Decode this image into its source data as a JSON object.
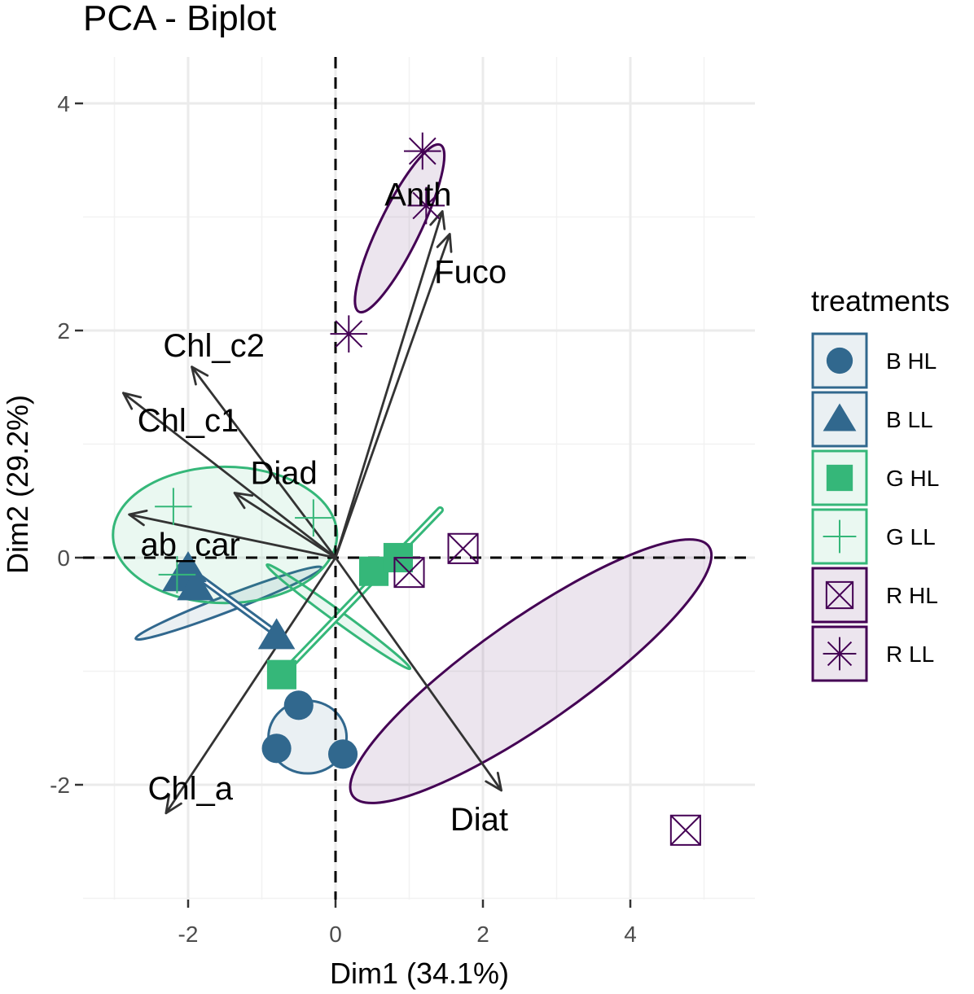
{
  "chart_data": {
    "type": "scatter",
    "title": "PCA - Biplot",
    "xlabel": "Dim1 (34.1%)",
    "ylabel": "Dim2 (29.2%)",
    "xlim": [
      -3.4,
      5.7
    ],
    "ylim": [
      -3.0,
      4.2
    ],
    "x_ticks": [
      -2,
      0,
      2,
      4
    ],
    "x_tick_labels": [
      "-2",
      "0",
      "2",
      "4"
    ],
    "y_ticks": [
      -2,
      0,
      2,
      4
    ],
    "y_tick_labels": [
      "-2",
      "0",
      "2",
      "4"
    ],
    "grid": true,
    "reference_lines": {
      "x": 0,
      "y": 0
    },
    "legend": {
      "title": "treatments",
      "position": "right",
      "entries": [
        {
          "label": "B HL",
          "color": "#31688E",
          "shape": "circle"
        },
        {
          "label": "B LL",
          "color": "#31688E",
          "shape": "triangle"
        },
        {
          "label": "G HL",
          "color": "#35B779",
          "shape": "square"
        },
        {
          "label": "G LL",
          "color": "#35B779",
          "shape": "plus"
        },
        {
          "label": "R HL",
          "color": "#440154",
          "shape": "square-x"
        },
        {
          "label": "R LL",
          "color": "#440154",
          "shape": "asterisk"
        }
      ]
    },
    "series": [
      {
        "name": "B HL",
        "color": "#31688E",
        "shape": "circle",
        "points": [
          [
            -0.5,
            -1.3
          ],
          [
            -0.8,
            -1.68
          ],
          [
            0.1,
            -1.73
          ]
        ],
        "ellipse": {
          "cx": -0.38,
          "cy": -1.58,
          "rx": 0.53,
          "ry": 0.32,
          "angle": 0
        }
      },
      {
        "name": "B LL",
        "color": "#31688E",
        "shape": "triangle",
        "points": [
          [
            -2.0,
            -0.1
          ],
          [
            -2.1,
            -0.18
          ],
          [
            -1.9,
            -0.26
          ],
          [
            -0.8,
            -0.69
          ]
        ],
        "ellipse": {
          "cx": -1.45,
          "cy": -0.4,
          "rx": 1.35,
          "ry": 0.07,
          "angle": 21
        }
      },
      {
        "name": "G HL",
        "color": "#35B779",
        "shape": "square",
        "points": [
          [
            -0.73,
            -1.03
          ],
          [
            0.52,
            -0.12
          ],
          [
            0.85,
            0.0
          ]
        ],
        "ellipse": {
          "cx": 0.04,
          "cy": -0.52,
          "rx": 1.2,
          "ry": 0.05,
          "angle": -36
        }
      },
      {
        "name": "G LL",
        "color": "#35B779",
        "shape": "plus",
        "points": [
          [
            -2.2,
            0.45
          ],
          [
            -2.15,
            -0.15
          ],
          [
            -0.3,
            0.35
          ]
        ],
        "ellipse": {
          "cx": -1.5,
          "cy": 0.2,
          "rx": 1.52,
          "ry": 0.6,
          "angle": 0
        }
      },
      {
        "name": "R HL",
        "color": "#440154",
        "shape": "square-x",
        "points": [
          [
            1.73,
            0.08
          ],
          [
            1.0,
            -0.13
          ],
          [
            4.75,
            -2.4
          ]
        ],
        "ellipse": {
          "cx": 2.65,
          "cy": -1.0,
          "rx": 2.95,
          "ry": 0.46,
          "angle": 35
        }
      },
      {
        "name": "R LL",
        "color": "#440154",
        "shape": "asterisk",
        "points": [
          [
            1.18,
            3.58
          ],
          [
            1.23,
            3.1
          ],
          [
            0.18,
            1.97
          ]
        ],
        "ellipse": {
          "cx": 0.87,
          "cy": 2.9,
          "rx": 1.26,
          "ry": 0.18,
          "angle": 64
        }
      }
    ],
    "connectors": [
      {
        "color": "#31688E",
        "points": [
          [
            -2.0,
            -0.1
          ],
          [
            -0.78,
            -0.68
          ]
        ]
      },
      {
        "color": "#35B779",
        "points": [
          [
            -0.73,
            -1.03
          ],
          [
            1.42,
            0.42
          ]
        ]
      }
    ],
    "variables": [
      {
        "name": "Anth",
        "x": 1.45,
        "y": 3.05,
        "label_x": 1.12,
        "label_y": 3.2
      },
      {
        "name": "Fuco",
        "x": 1.55,
        "y": 2.85,
        "label_x": 1.83,
        "label_y": 2.52
      },
      {
        "name": "Chl_c2",
        "x": -1.95,
        "y": 1.68,
        "label_x": -1.65,
        "label_y": 1.87
      },
      {
        "name": "Chl_c1",
        "x": -2.88,
        "y": 1.45,
        "label_x": -2.0,
        "label_y": 1.21
      },
      {
        "name": "Diad",
        "x": -1.37,
        "y": 0.57,
        "label_x": -0.7,
        "label_y": 0.75
      },
      {
        "name": "ab_car",
        "x": -2.8,
        "y": 0.38,
        "label_x": -1.97,
        "label_y": 0.12
      },
      {
        "name": "Chl_a",
        "x": -2.3,
        "y": -2.25,
        "label_x": -1.97,
        "label_y": -2.03
      },
      {
        "name": "Diat",
        "x": 2.25,
        "y": -2.05,
        "label_x": 1.95,
        "label_y": -2.3
      }
    ]
  }
}
